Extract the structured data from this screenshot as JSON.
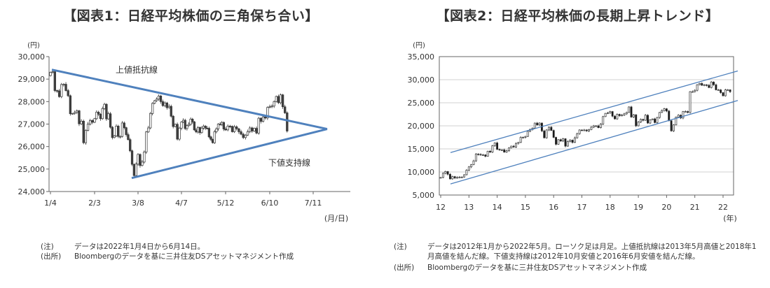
{
  "panels": [
    {
      "title": "【図表1：日経平均株価の三角保ち合い】",
      "notes": [
        {
          "label": "(注)",
          "text": "データは2022年1月4日から6月14日。"
        },
        {
          "label": "(出所)",
          "text": "Bloombergのデータを基に三井住友DSアセットマネジメント作成"
        }
      ]
    },
    {
      "title": "【図表2：日経平均株価の長期上昇トレンド】",
      "notes": [
        {
          "label": "(注)",
          "text": "データは2012年1月から2022年5月。ローソク足は月足。上値抵抗線は2013年5月高値と2018年1月高値を結んだ線。下値支持線は2012年10月安値と2016年6月安値を結んだ線。"
        },
        {
          "label": "(出所)",
          "text": "Bloombergのデータを基に三井住友DSアセットマネジメント作成"
        }
      ]
    }
  ],
  "chart_data": [
    {
      "type": "candlestick",
      "ylabel": "(円)",
      "xlabel": "(月/日)",
      "ylim": [
        24000,
        30000
      ],
      "yticks": [
        "24,000",
        "25,000",
        "26,000",
        "27,000",
        "28,000",
        "29,000",
        "30,000"
      ],
      "xticks": [
        "1/4",
        "2/3",
        "3/8",
        "4/7",
        "5/12",
        "6/10",
        "7/11"
      ],
      "grid": false,
      "colors": {
        "up": "#ffffff",
        "down": "#404040",
        "trendline": "#4f81bd"
      },
      "annotations": [
        "上値抵抗線",
        "下値支持線"
      ],
      "series": [
        {
          "name": "daily_close",
          "values": [
            29300,
            29330,
            28490,
            28480,
            28220,
            28760,
            28770,
            28490,
            28260,
            27460,
            27470,
            27520,
            27590,
            27010,
            27130,
            26170,
            26720,
            27000,
            27160,
            27080,
            27240,
            27530,
            27440,
            27240,
            27690,
            27880,
            27230,
            27460,
            26860,
            26400,
            26480,
            26910,
            26450,
            26450,
            27050,
            26840,
            26530,
            26310,
            25810,
            25210,
            24710,
            25220,
            25650,
            25160,
            25310,
            25760,
            26650,
            26830,
            27470,
            27920,
            28040,
            28110,
            28250,
            28000,
            27820,
            27940,
            27730,
            27790,
            27350,
            26890,
            26990,
            26330,
            26820,
            27090,
            27170,
            26800,
            26930,
            26990,
            27220,
            27100,
            26740,
            26650,
            26850,
            26620,
            26820,
            26910,
            26820,
            26810,
            26430,
            26320,
            26170,
            26660,
            26790,
            27000,
            26980,
            27070,
            26780,
            26740,
            26910,
            26900,
            26660,
            26880,
            26790,
            26660,
            26550,
            26400,
            26510,
            26660,
            26830,
            26690,
            26810,
            26600,
            27260,
            27120,
            27320,
            27270,
            27740,
            27770,
            27800,
            28000,
            28230,
            27950,
            28300,
            27770,
            27500,
            26690
          ]
        },
        {
          "name": "resistance_line",
          "x": [
            "1/4",
            "7/19"
          ],
          "values": [
            29420,
            26780
          ]
        },
        {
          "name": "support_line",
          "x": [
            "3/7",
            "7/19"
          ],
          "values": [
            24600,
            26780
          ]
        }
      ]
    },
    {
      "type": "candlestick",
      "ylabel": "(円)",
      "xlabel": "(年)",
      "ylim": [
        5000,
        35000
      ],
      "yticks": [
        "5,000",
        "10,000",
        "15,000",
        "20,000",
        "25,000",
        "30,000",
        "35,000"
      ],
      "xticks": [
        "12",
        "13",
        "14",
        "15",
        "16",
        "17",
        "18",
        "19",
        "20",
        "21",
        "22"
      ],
      "grid": true,
      "colors": {
        "up": "#ffffff",
        "down": "#111111",
        "trendline": "#4f81bd"
      },
      "series": [
        {
          "name": "monthly_close",
          "x_start": "2012-01",
          "x_end": "2022-05",
          "values": [
            8800,
            9700,
            10100,
            9500,
            8500,
            9000,
            8700,
            8800,
            8900,
            8900,
            9400,
            10400,
            11100,
            11600,
            12400,
            13900,
            13800,
            13700,
            13700,
            13400,
            14500,
            14300,
            15700,
            16300,
            14900,
            14800,
            14800,
            14300,
            14600,
            15200,
            15600,
            15400,
            16200,
            16400,
            17500,
            17500,
            17700,
            18800,
            19200,
            19500,
            20600,
            20200,
            20600,
            18900,
            17400,
            19100,
            19700,
            19000,
            17500,
            16000,
            17000,
            16700,
            17200,
            15600,
            16600,
            16900,
            16400,
            17400,
            18300,
            19100,
            19000,
            19100,
            18900,
            19200,
            19700,
            20000,
            20000,
            19600,
            20400,
            22000,
            22700,
            22800,
            23100,
            22100,
            21500,
            22500,
            22200,
            22300,
            22600,
            22900,
            24100,
            21900,
            22400,
            20000,
            20800,
            21400,
            21200,
            22300,
            20600,
            21300,
            21500,
            20700,
            21800,
            22900,
            23300,
            23700,
            23200,
            21100,
            18900,
            20200,
            21900,
            22300,
            21700,
            23100,
            23100,
            22900,
            27400,
            27400,
            27700,
            28900,
            29200,
            28800,
            28900,
            28800,
            28300,
            29500,
            28900,
            27800,
            27800,
            27200,
            26500,
            27800,
            27800,
            27400
          ]
        },
        {
          "name": "resistance_line",
          "x": [
            "2012-06",
            "2022-06"
          ],
          "values": [
            14200,
            31900
          ]
        },
        {
          "name": "support_line",
          "x": [
            "2012-06",
            "2022-06"
          ],
          "values": [
            7400,
            25500
          ]
        }
      ]
    }
  ]
}
